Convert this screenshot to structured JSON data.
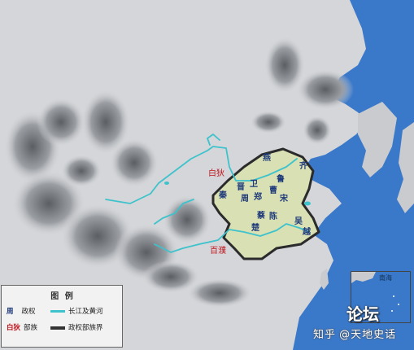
{
  "states": {
    "yan": "燕",
    "qi": "齐",
    "jin": "晋",
    "wei": "卫",
    "lu": "鲁",
    "cao": "曹",
    "qin": "秦",
    "zhou": "周",
    "zheng": "郑",
    "song": "宋",
    "cai": "蔡",
    "chen": "陈",
    "chu": "楚",
    "wu": "吴",
    "yue": "越"
  },
  "tribes": {
    "baidi": "白狄",
    "baipu": "百濮"
  },
  "inset": {
    "label": "南海"
  },
  "legend": {
    "title": "图 例",
    "items": [
      {
        "key": "周",
        "text": "政权",
        "kind": "polity",
        "color": "#1f3a7a"
      },
      {
        "key": "白狄",
        "text": "部族",
        "kind": "tribe",
        "color": "#c0141c"
      },
      {
        "text": "长江及黄河",
        "kind": "river",
        "color": "#3ec2cc"
      },
      {
        "text": "政权部族界",
        "kind": "border",
        "color": "#333333"
      }
    ]
  },
  "overlay": {
    "forum_logo": "论坛"
  },
  "watermark": {
    "brand": "知乎",
    "author": "@天地史话"
  },
  "colors": {
    "sea": "#3a78c9",
    "land": "#d4d6d9",
    "territory": "#d8e0b4",
    "river": "#3ec2cc",
    "border": "#2b2b2b"
  }
}
